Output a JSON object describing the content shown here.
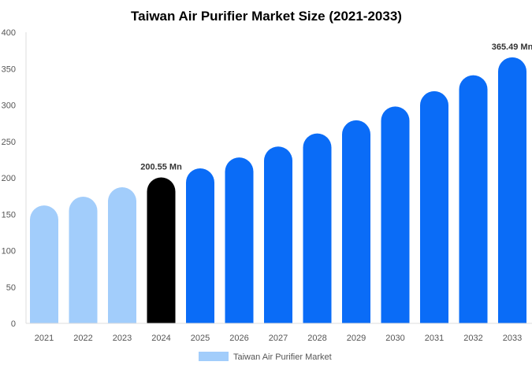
{
  "chart_data": {
    "type": "bar",
    "title": "Taiwan Air Purifier Market Size (2021-2033)",
    "xlabel": "",
    "ylabel": "",
    "ylim": [
      0,
      400
    ],
    "yticks": [
      0,
      50,
      100,
      150,
      200,
      250,
      300,
      350,
      400
    ],
    "grid": false,
    "legend_position": "bottom",
    "categories": [
      "2021",
      "2022",
      "2023",
      "2024",
      "2025",
      "2026",
      "2027",
      "2028",
      "2029",
      "2030",
      "2031",
      "2032",
      "2033"
    ],
    "series": [
      {
        "name": "Taiwan Air Purifier Market",
        "values": [
          162,
          174,
          187,
          200.55,
          213,
          228,
          243,
          261,
          279,
          298,
          319,
          341,
          365.49
        ]
      }
    ],
    "bar_colors": {
      "historical": "#a2cdfb",
      "base_year": "#000000",
      "forecast": "#0a6cf7"
    },
    "data_labels": [
      {
        "category": "2024",
        "text": "200.55 Mn"
      },
      {
        "category": "2033",
        "text": "365.49 Mn"
      }
    ]
  }
}
